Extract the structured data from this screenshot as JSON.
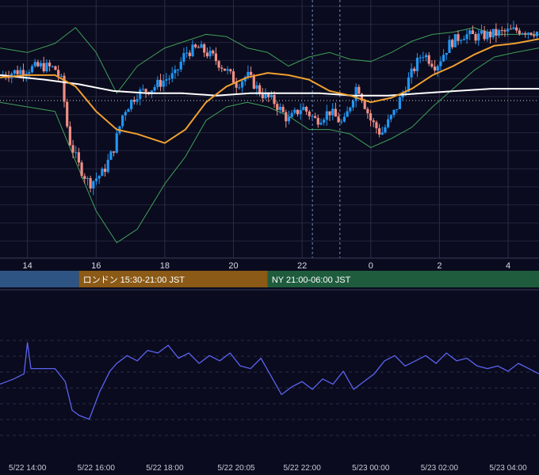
{
  "colors": {
    "background": "#0a0b1e",
    "grid": "#2a2d47",
    "candle_up": "#2196f3",
    "candle_down": "#ef8f86",
    "bollinger": "#3fa05a",
    "ma_fast": "#f0a030",
    "ma_slow": "#ffffff",
    "oscillator": "#5b63f0",
    "session_tokyo": "#2e5483",
    "session_london": "#8b5a16",
    "session_ny": "#1f5c3e",
    "marker_line": "#6a8fd0"
  },
  "main_axis": {
    "ticks": [
      "14",
      "16",
      "18",
      "20",
      "22",
      "0",
      "2",
      "4"
    ]
  },
  "sessions": [
    {
      "name": "tokyo",
      "label": ""
    },
    {
      "name": "london",
      "label": "ロンドン 15:30-21:00 JST"
    },
    {
      "name": "ny",
      "label": "NY 21:00-06:00 JST"
    }
  ],
  "oscillator_axis": {
    "ticks": [
      "5/22 14:00",
      "5/22 16:00",
      "5/22 18:00",
      "5/22 20:05",
      "5/22 22:00",
      "5/23 00:00",
      "5/23 02:00",
      "5/23 04:00"
    ]
  },
  "chart_data": [
    {
      "type": "candlestick",
      "title": "",
      "xlabel": "",
      "ylabel": "",
      "x_tick_labels": [
        "14",
        "16",
        "18",
        "20",
        "22",
        "0",
        "2",
        "4"
      ],
      "x_hours_range": [
        13.2,
        28.9
      ],
      "y_range": [
        0,
        100
      ],
      "grid": true,
      "series": [
        {
          "name": "",
          "kind": "close_path",
          "x": [
            13.2,
            13.8,
            14.4,
            14.8,
            15.0,
            15.2,
            15.5,
            15.8,
            16.2,
            16.5,
            16.8,
            17.2,
            17.6,
            18.0,
            18.3,
            18.6,
            19.0,
            19.4,
            19.8,
            20.1,
            20.4,
            20.8,
            21.2,
            21.6,
            22.0,
            22.4,
            22.8,
            23.2,
            23.6,
            24.0,
            24.3,
            24.7,
            25.1,
            25.5,
            25.9,
            26.3,
            26.7,
            27.1,
            27.5,
            27.9,
            28.3,
            28.9
          ],
          "y": [
            78,
            80,
            82,
            81,
            75,
            50,
            38,
            30,
            35,
            45,
            62,
            70,
            72,
            76,
            78,
            88,
            90,
            86,
            80,
            74,
            78,
            70,
            66,
            58,
            64,
            58,
            62,
            56,
            74,
            58,
            52,
            62,
            76,
            88,
            82,
            92,
            96,
            95,
            96,
            97,
            98,
            97
          ]
        },
        {
          "name": "",
          "kind": "ma_fast",
          "x": [
            13.2,
            14.0,
            14.8,
            15.4,
            16.0,
            16.6,
            17.2,
            18.0,
            18.6,
            19.2,
            19.8,
            20.4,
            21.0,
            21.6,
            22.2,
            22.8,
            23.4,
            24.0,
            24.6,
            25.2,
            25.8,
            26.4,
            27.0,
            27.6,
            28.2,
            28.9
          ],
          "y": [
            77,
            78,
            78,
            73,
            62,
            54,
            52,
            48,
            54,
            66,
            73,
            77,
            79,
            78,
            76,
            71,
            69,
            66,
            68,
            72,
            78,
            82,
            87,
            91,
            92,
            94
          ]
        },
        {
          "name": "",
          "kind": "ma_slow",
          "x": [
            13.2,
            14.5,
            15.5,
            16.5,
            17.5,
            18.5,
            19.5,
            20.5,
            21.5,
            22.5,
            23.5,
            24.5,
            25.5,
            26.5,
            27.5,
            28.9
          ],
          "y": [
            78,
            76,
            74,
            71,
            70,
            70,
            69,
            70,
            70,
            70,
            69,
            69,
            70,
            71,
            72,
            72
          ]
        },
        {
          "name": "",
          "kind": "bollinger_upper",
          "x": [
            13.2,
            14.0,
            14.8,
            15.4,
            16.0,
            16.6,
            17.2,
            18.0,
            18.6,
            19.2,
            19.8,
            20.4,
            21.0,
            21.6,
            22.2,
            22.8,
            23.4,
            24.0,
            24.6,
            25.2,
            25.8,
            26.4,
            27.0,
            27.6,
            28.2,
            28.9
          ],
          "y": [
            90,
            88,
            92,
            99,
            88,
            70,
            82,
            90,
            93,
            96,
            95,
            90,
            88,
            82,
            86,
            88,
            85,
            84,
            88,
            93,
            96,
            97,
            99,
            96,
            96,
            96
          ]
        },
        {
          "name": "",
          "kind": "bollinger_lower",
          "x": [
            13.2,
            14.0,
            14.8,
            15.4,
            16.0,
            16.6,
            17.2,
            18.0,
            18.6,
            19.2,
            19.8,
            20.4,
            21.0,
            21.6,
            22.2,
            22.8,
            23.4,
            24.0,
            24.6,
            25.2,
            25.8,
            26.4,
            27.0,
            27.6,
            28.2,
            28.9
          ],
          "y": [
            66,
            64,
            62,
            40,
            18,
            4,
            10,
            30,
            42,
            58,
            64,
            66,
            64,
            60,
            54,
            54,
            52,
            46,
            50,
            55,
            64,
            72,
            80,
            86,
            88,
            90
          ]
        }
      ]
    },
    {
      "type": "line",
      "title": "",
      "xlabel": "",
      "ylabel": "",
      "x_tick_labels": [
        "5/22 14:00",
        "5/22 16:00",
        "5/22 18:00",
        "5/22 20:05",
        "5/22 22:00",
        "5/23 00:00",
        "5/23 02:00",
        "5/23 04:00"
      ],
      "x_hours_range": [
        13.2,
        28.9
      ],
      "y_range": [
        0,
        100
      ],
      "grid": true,
      "series": [
        {
          "name": "",
          "x": [
            13.2,
            13.6,
            13.9,
            14.0,
            14.1,
            14.4,
            14.8,
            15.1,
            15.3,
            15.5,
            15.8,
            16.1,
            16.4,
            16.6,
            16.9,
            17.2,
            17.5,
            17.8,
            18.1,
            18.4,
            18.7,
            19.0,
            19.3,
            19.6,
            19.9,
            20.2,
            20.5,
            20.8,
            21.1,
            21.4,
            21.7,
            22.0,
            22.3,
            22.6,
            22.9,
            23.2,
            23.5,
            23.8,
            24.1,
            24.4,
            24.7,
            25.0,
            25.3,
            25.6,
            25.9,
            26.2,
            26.5,
            26.8,
            27.1,
            27.4,
            27.7,
            28.0,
            28.3,
            28.6,
            28.9
          ],
          "y": [
            48,
            52,
            56,
            80,
            60,
            60,
            60,
            50,
            28,
            24,
            21,
            42,
            58,
            64,
            70,
            66,
            74,
            72,
            78,
            68,
            72,
            64,
            70,
            66,
            72,
            62,
            60,
            68,
            54,
            40,
            46,
            50,
            44,
            52,
            48,
            58,
            44,
            50,
            56,
            66,
            70,
            62,
            66,
            70,
            64,
            72,
            66,
            68,
            62,
            60,
            62,
            58,
            64,
            60,
            56
          ]
        }
      ]
    }
  ]
}
